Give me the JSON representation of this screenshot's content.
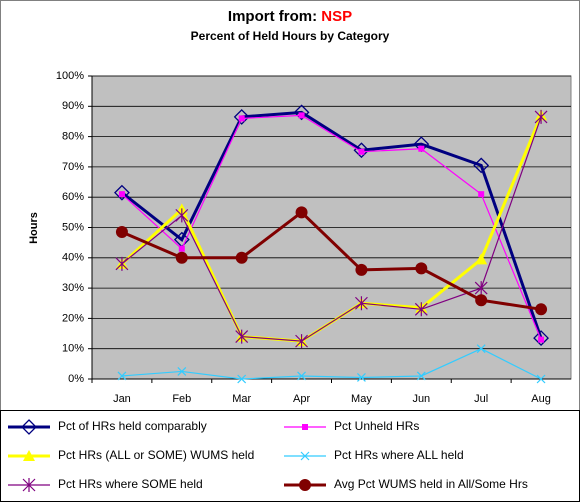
{
  "chart_data": {
    "type": "line",
    "title": "Import from:",
    "title_highlight": "NSP",
    "subtitle": "Percent of Held Hours by Category",
    "y_label": "Hours",
    "categories": [
      "Jan",
      "Feb",
      "Mar",
      "Apr",
      "May",
      "Jun",
      "Jul",
      "Aug"
    ],
    "ylim": [
      0,
      100
    ],
    "yticks": [
      {
        "value": 0,
        "label": "0%"
      },
      {
        "value": 10,
        "label": "10%"
      },
      {
        "value": 20,
        "label": "20%"
      },
      {
        "value": 30,
        "label": "30%"
      },
      {
        "value": 40,
        "label": "40%"
      },
      {
        "value": 50,
        "label": "50%"
      },
      {
        "value": 60,
        "label": "60%"
      },
      {
        "value": 70,
        "label": "70%"
      },
      {
        "value": 80,
        "label": "80%"
      },
      {
        "value": 90,
        "label": "90%"
      },
      {
        "value": 100,
        "label": "100%"
      }
    ],
    "grid": true,
    "legend": "bottom",
    "series": [
      {
        "name": "Pct of HRs held comparably",
        "color": "#000080",
        "marker": "diamond",
        "values": [
          61.5,
          46,
          86.5,
          88,
          75.5,
          77.5,
          70.5,
          13.5
        ]
      },
      {
        "name": "Pct Unheld HRs",
        "color": "#ff00ff",
        "marker": "square",
        "values": [
          61,
          43,
          86,
          87,
          75,
          76,
          61,
          13
        ]
      },
      {
        "name": "Pct HRs (ALL or SOME) WUMS held",
        "color": "#ffff00",
        "marker": "triangle",
        "values": [
          38,
          56,
          14,
          12.5,
          25,
          23.5,
          39.5,
          87
        ]
      },
      {
        "name": "Pct HRs where ALL held",
        "color": "#33ccff",
        "marker": "x",
        "values": [
          1,
          2.5,
          0,
          1,
          0.5,
          1,
          10,
          0
        ]
      },
      {
        "name": "Pct HRs where SOME held",
        "color": "#800080",
        "marker": "star",
        "values": [
          38,
          54,
          14,
          12.5,
          25,
          23,
          30,
          86.5
        ]
      },
      {
        "name": "Avg Pct WUMS held in All/Some Hrs",
        "color": "#800000",
        "marker": "circle",
        "values": [
          48.5,
          40,
          40,
          55,
          36,
          36.5,
          26,
          23
        ]
      }
    ]
  }
}
